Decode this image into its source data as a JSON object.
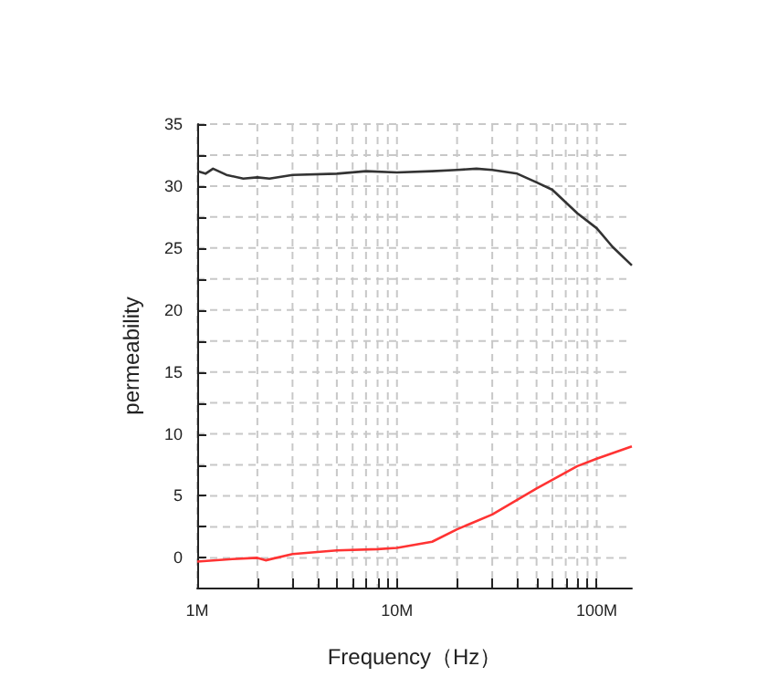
{
  "chart_data": {
    "type": "line",
    "xlabel": "Frequency（Hz）",
    "ylabel": "permeability",
    "log": "x",
    "xlim": [
      1000000,
      150000000
    ],
    "xticks": [
      {
        "value": 1000000,
        "label": "1M"
      },
      {
        "value": 2000000,
        "label": null
      },
      {
        "value": 3000000,
        "label": null
      },
      {
        "value": 4000000,
        "label": null
      },
      {
        "value": 5000000,
        "label": null
      },
      {
        "value": 6000000,
        "label": null
      },
      {
        "value": 7000000,
        "label": null
      },
      {
        "value": 8000000,
        "label": null
      },
      {
        "value": 9000000,
        "label": null
      },
      {
        "value": 10000000,
        "label": "10M"
      },
      {
        "value": 20000000,
        "label": null
      },
      {
        "value": 30000000,
        "label": null
      },
      {
        "value": 40000000,
        "label": null
      },
      {
        "value": 50000000,
        "label": null
      },
      {
        "value": 60000000,
        "label": null
      },
      {
        "value": 70000000,
        "label": null
      },
      {
        "value": 80000000,
        "label": null
      },
      {
        "value": 90000000,
        "label": null
      },
      {
        "value": 100000000,
        "label": "100M"
      }
    ],
    "ylim": [
      -2.4,
      35
    ],
    "yticks": [
      0,
      {
        "value": 2.5,
        "label": null
      },
      5,
      {
        "value": 7.5,
        "label": null
      },
      10,
      {
        "value": 12.5,
        "label": null
      },
      15,
      {
        "value": 17.5,
        "label": null
      },
      20,
      {
        "value": 22.5,
        "label": null
      },
      25,
      {
        "value": 27.5,
        "label": null
      },
      30,
      {
        "value": 32.5,
        "label": null
      },
      35
    ],
    "grid": true,
    "marker": "none",
    "line_style": "solid",
    "series": [
      {
        "color": "#333333",
        "x": [
          1000000,
          1100000,
          1200000,
          1400000,
          1700000,
          2000000,
          2300000,
          3000000,
          5000000,
          7000000,
          10000000,
          15000000,
          20000000,
          25000000,
          30000000,
          40000000,
          50000000,
          60000000,
          80000000,
          100000000,
          120000000,
          150000000
        ],
        "values": [
          31.2,
          31.0,
          31.4,
          30.9,
          30.6,
          30.7,
          30.6,
          30.9,
          31.0,
          31.2,
          31.1,
          31.2,
          31.3,
          31.4,
          31.3,
          31.0,
          30.3,
          29.7,
          27.8,
          26.6,
          25.1,
          23.6
        ]
      },
      {
        "color": "#ff3333",
        "x": [
          1000000,
          1500000,
          2000000,
          2200000,
          3000000,
          5000000,
          8000000,
          10000000,
          15000000,
          20000000,
          30000000,
          50000000,
          80000000,
          100000000,
          150000000
        ],
        "values": [
          -0.3,
          -0.1,
          0,
          -0.2,
          0.3,
          0.6,
          0.7,
          0.8,
          1.3,
          2.3,
          3.5,
          5.6,
          7.4,
          8.0,
          9.0
        ]
      }
    ]
  }
}
